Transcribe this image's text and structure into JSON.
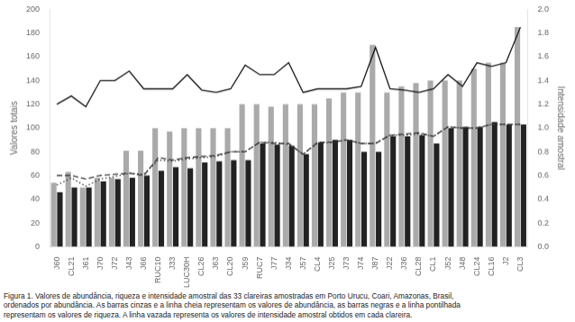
{
  "chart_data": {
    "type": "bar",
    "categories": [
      "J60",
      "CL21",
      "J61",
      "J70",
      "J72",
      "J43",
      "J66",
      "RUC10",
      "J33",
      "LUC30H",
      "CL26",
      "J63",
      "CL20",
      "J59",
      "RUC7",
      "J77",
      "J34",
      "J57",
      "CL4",
      "J25",
      "J73",
      "J74",
      "J87",
      "J22",
      "J36",
      "CL28",
      "CL1",
      "J52",
      "J48",
      "CL24",
      "CL16",
      "J2",
      "CL3"
    ],
    "series": [
      {
        "type": "bar",
        "color": "#aaaaaa",
        "values": [
          54,
          63,
          50,
          58,
          58,
          81,
          81,
          100,
          97,
          100,
          100,
          100,
          100,
          120,
          120,
          118,
          120,
          120,
          120,
          125,
          130,
          130,
          170,
          130,
          135,
          138,
          140,
          140,
          140,
          150,
          155,
          155,
          185
        ]
      },
      {
        "type": "bar",
        "color": "#222222",
        "values": [
          46,
          50,
          50,
          55,
          57,
          58,
          60,
          64,
          67,
          66,
          71,
          72,
          73,
          73,
          87,
          86,
          85,
          78,
          88,
          90,
          90,
          80,
          80,
          93,
          93,
          94,
          87,
          100,
          101,
          101,
          105,
          103,
          103
        ]
      },
      {
        "type": "line",
        "color": "#111111",
        "line_style": "solid",
        "values": [
          120,
          127,
          118,
          140,
          140,
          148,
          133,
          133,
          133,
          145,
          132,
          130,
          133,
          153,
          145,
          145,
          155,
          130,
          133,
          133,
          133,
          135,
          168,
          133,
          132,
          130,
          133,
          145,
          135,
          155,
          152,
          155,
          185
        ]
      },
      {
        "type": "line",
        "color": "#333333",
        "line_style": "dotted",
        "values": [
          52,
          58,
          51,
          57,
          59,
          62,
          61,
          73,
          72,
          74,
          75,
          76,
          80,
          80,
          88,
          88,
          86,
          78,
          87,
          88,
          90,
          87,
          87,
          94,
          94,
          95,
          93,
          101,
          100,
          100,
          103,
          103,
          103
        ]
      },
      {
        "type": "line",
        "color": "#333333",
        "line_style": "dashed",
        "axis": "y2",
        "values": [
          0.6,
          0.6,
          0.57,
          0.6,
          0.61,
          0.62,
          0.6,
          0.75,
          0.73,
          0.75,
          0.76,
          0.77,
          0.8,
          0.8,
          0.88,
          0.87,
          0.87,
          0.78,
          0.88,
          0.88,
          0.9,
          0.87,
          0.87,
          0.94,
          0.95,
          0.96,
          0.93,
          1.01,
          1.0,
          1.0,
          1.03,
          1.03,
          1.03
        ]
      }
    ],
    "ylabel": "Valores totais",
    "y2label": "Intensidade amostral",
    "ylim": [
      0,
      200
    ],
    "yticks": [
      0,
      20,
      40,
      60,
      80,
      100,
      120,
      140,
      160,
      180,
      200
    ],
    "y2lim": [
      0,
      2
    ],
    "y2ticks": [
      {
        "value": 0,
        "label": "0.0"
      },
      0.2,
      0.4,
      0.6,
      0.8,
      {
        "value": 1,
        "label": "1.0"
      },
      1.2,
      1.4,
      1.6,
      1.8,
      {
        "value": 2,
        "label": "2.0"
      }
    ],
    "grid": false,
    "caption": "Figura 1. Valores de abundância, riqueza e intensidade amostral das 33 clareiras amostradas em Porto Urucu, Coari, Amazonas, Brasil,\nordenados por abundância. As barras cinzas e a linha cheia representam os valores de abundância, as barras negras e a linha pontilhada\nrepresentam os valores de riqueza. A linha vazada representa os valores de intensidade amostral obtidos em cada clareira."
  }
}
